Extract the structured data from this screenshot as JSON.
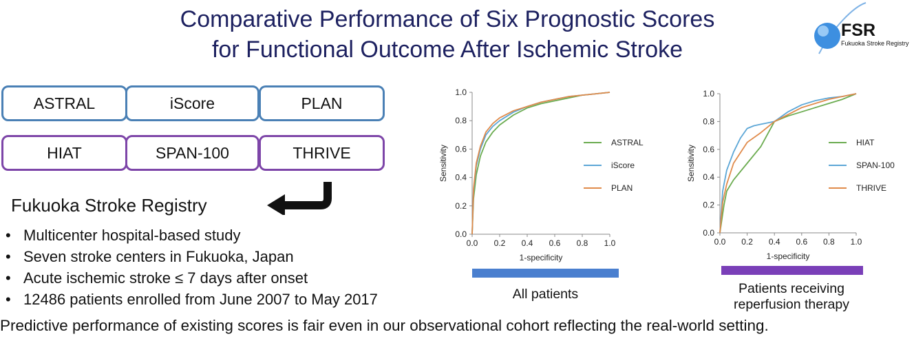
{
  "title": {
    "line1": "Comparative Performance of Six Prognostic Scores",
    "line2": "for Functional Outcome After Ischemic Stroke"
  },
  "logo": {
    "abbr": "FSR",
    "name": "Fukuoka Stroke Registry"
  },
  "scores_row1": [
    "ASTRAL",
    "iScore",
    "PLAN"
  ],
  "scores_row2": [
    "HIAT",
    "SPAN-100",
    "THRIVE"
  ],
  "registry": {
    "heading": "Fukuoka Stroke Registry",
    "bullets": [
      "Multicenter hospital-based study",
      "Seven stroke centers in Fukuoka, Japan",
      "Acute ischemic stroke ≤ 7 days after onset",
      "12486 patients enrolled from June 2007 to May 2017"
    ]
  },
  "footer": "Predictive performance of existing scores is fair even in our observational cohort reflecting the real-world setting.",
  "colors": {
    "title": "#1d2160",
    "blue_box": "#4a80b5",
    "purple_box": "#7d45a8",
    "bar_blue": "#4a7fcf",
    "bar_purple": "#7a3fb8"
  },
  "chart_data": [
    {
      "type": "line",
      "xlabel": "1-specificity",
      "ylabel": "Sensitivity",
      "xlim": [
        0,
        1
      ],
      "ylim": [
        0,
        1
      ],
      "xticks": [
        "0.0",
        "0.2",
        "0.4",
        "0.6",
        "0.8",
        "1.0"
      ],
      "yticks": [
        "0.0",
        "0.2",
        "0.4",
        "0.6",
        "0.8",
        "1.0"
      ],
      "legend_position": "right",
      "caption": "All patients",
      "series": [
        {
          "name": "ASTRAL",
          "color": "#6aab4f",
          "points": [
            [
              0,
              0
            ],
            [
              0.01,
              0.25
            ],
            [
              0.03,
              0.42
            ],
            [
              0.06,
              0.55
            ],
            [
              0.1,
              0.65
            ],
            [
              0.15,
              0.72
            ],
            [
              0.2,
              0.77
            ],
            [
              0.3,
              0.84
            ],
            [
              0.4,
              0.89
            ],
            [
              0.5,
              0.92
            ],
            [
              0.6,
              0.94
            ],
            [
              0.7,
              0.96
            ],
            [
              0.8,
              0.98
            ],
            [
              0.9,
              0.99
            ],
            [
              1,
              1
            ]
          ]
        },
        {
          "name": "iScore",
          "color": "#5ba6d6",
          "points": [
            [
              0,
              0
            ],
            [
              0.01,
              0.3
            ],
            [
              0.03,
              0.48
            ],
            [
              0.06,
              0.6
            ],
            [
              0.1,
              0.7
            ],
            [
              0.15,
              0.76
            ],
            [
              0.2,
              0.8
            ],
            [
              0.3,
              0.86
            ],
            [
              0.4,
              0.9
            ],
            [
              0.5,
              0.93
            ],
            [
              0.6,
              0.95
            ],
            [
              0.7,
              0.97
            ],
            [
              0.8,
              0.98
            ],
            [
              0.9,
              0.99
            ],
            [
              1,
              1
            ]
          ]
        },
        {
          "name": "PLAN",
          "color": "#e08a4a",
          "points": [
            [
              0,
              0
            ],
            [
              0.01,
              0.32
            ],
            [
              0.03,
              0.5
            ],
            [
              0.06,
              0.62
            ],
            [
              0.1,
              0.72
            ],
            [
              0.15,
              0.78
            ],
            [
              0.2,
              0.82
            ],
            [
              0.3,
              0.87
            ],
            [
              0.4,
              0.9
            ],
            [
              0.5,
              0.93
            ],
            [
              0.6,
              0.95
            ],
            [
              0.7,
              0.97
            ],
            [
              0.8,
              0.98
            ],
            [
              0.9,
              0.99
            ],
            [
              1,
              1
            ]
          ]
        }
      ]
    },
    {
      "type": "line",
      "xlabel": "1-specificity",
      "ylabel": "Sensitivity",
      "xlim": [
        0,
        1
      ],
      "ylim": [
        0,
        1
      ],
      "xticks": [
        "0.0",
        "0.2",
        "0.4",
        "0.6",
        "0.8",
        "1.0"
      ],
      "yticks": [
        "0.0",
        "0.2",
        "0.4",
        "0.6",
        "0.8",
        "1.0"
      ],
      "legend_position": "right",
      "caption": "Patients receiving reperfusion therapy",
      "series": [
        {
          "name": "HIAT",
          "color": "#6aab4f",
          "points": [
            [
              0,
              0
            ],
            [
              0.03,
              0.2
            ],
            [
              0.05,
              0.3
            ],
            [
              0.1,
              0.38
            ],
            [
              0.2,
              0.5
            ],
            [
              0.3,
              0.62
            ],
            [
              0.4,
              0.8
            ],
            [
              0.5,
              0.84
            ],
            [
              0.6,
              0.87
            ],
            [
              0.7,
              0.9
            ],
            [
              0.8,
              0.93
            ],
            [
              0.9,
              0.96
            ],
            [
              1,
              1
            ]
          ]
        },
        {
          "name": "SPAN-100",
          "color": "#5ba6d6",
          "points": [
            [
              0,
              0
            ],
            [
              0.02,
              0.3
            ],
            [
              0.05,
              0.45
            ],
            [
              0.1,
              0.58
            ],
            [
              0.15,
              0.68
            ],
            [
              0.2,
              0.75
            ],
            [
              0.25,
              0.77
            ],
            [
              0.3,
              0.78
            ],
            [
              0.4,
              0.8
            ],
            [
              0.5,
              0.87
            ],
            [
              0.6,
              0.92
            ],
            [
              0.7,
              0.95
            ],
            [
              0.8,
              0.97
            ],
            [
              0.9,
              0.98
            ],
            [
              1,
              1
            ]
          ]
        },
        {
          "name": "THRIVE",
          "color": "#e08a4a",
          "points": [
            [
              0,
              0
            ],
            [
              0.02,
              0.22
            ],
            [
              0.05,
              0.35
            ],
            [
              0.1,
              0.5
            ],
            [
              0.2,
              0.65
            ],
            [
              0.3,
              0.72
            ],
            [
              0.4,
              0.8
            ],
            [
              0.5,
              0.85
            ],
            [
              0.6,
              0.9
            ],
            [
              0.7,
              0.93
            ],
            [
              0.8,
              0.96
            ],
            [
              0.9,
              0.98
            ],
            [
              1,
              1
            ]
          ]
        }
      ]
    }
  ]
}
